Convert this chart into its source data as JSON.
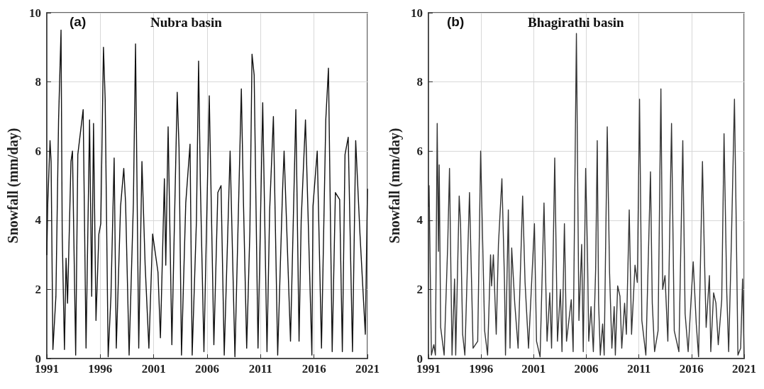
{
  "chart_data": [
    {
      "type": "line",
      "title": "Nubra basin",
      "annotations": [
        "(a)"
      ],
      "ylabel": "Snowfall (mm/day)",
      "xlim": [
        1991,
        2021
      ],
      "ylim": [
        0,
        10
      ],
      "xticks": [
        1991,
        1996,
        2001,
        2006,
        2011,
        2016,
        2021
      ],
      "yticks": [
        0,
        2,
        4,
        6,
        8,
        10
      ],
      "grid": true,
      "marker": "none",
      "x": [
        1991.0,
        1991.09,
        1991.3,
        1991.4,
        1991.57,
        1991.85,
        1992.1,
        1992.33,
        1992.44,
        1992.65,
        1992.8,
        1992.94,
        1993.26,
        1993.4,
        1993.7,
        1993.9,
        1994.4,
        1994.67,
        1995.0,
        1995.2,
        1995.37,
        1995.6,
        1995.87,
        1996.05,
        1996.3,
        1996.46,
        1996.74,
        1997.0,
        1997.3,
        1997.5,
        1997.9,
        1998.2,
        1998.37,
        1998.7,
        1999.1,
        1999.3,
        1999.6,
        1999.9,
        2000.2,
        2000.55,
        2000.9,
        2001.4,
        2001.63,
        2002.0,
        2002.13,
        2002.35,
        2002.7,
        2003.2,
        2003.37,
        2003.6,
        2004.0,
        2004.4,
        2004.6,
        2005.0,
        2005.2,
        2005.37,
        2005.7,
        2006.2,
        2006.63,
        2007.0,
        2007.3,
        2007.6,
        2008.15,
        2008.6,
        2009.2,
        2009.4,
        2009.7,
        2010.0,
        2010.2,
        2010.4,
        2010.76,
        2011.2,
        2011.6,
        2011.85,
        2012.2,
        2012.6,
        2013.05,
        2013.2,
        2013.4,
        2013.8,
        2014.3,
        2014.6,
        2014.8,
        2015.2,
        2015.8,
        2015.9,
        2016.3,
        2016.7,
        2017.1,
        2017.35,
        2017.7,
        2018.0,
        2018.4,
        2018.65,
        2018.9,
        2019.2,
        2019.6,
        2019.9,
        2020.3,
        2020.8,
        2021.0
      ],
      "series": [
        {
          "color": "#111111",
          "values": [
            3.0,
            4.5,
            6.3,
            5.7,
            0.26,
            1.8,
            6.9,
            9.5,
            3.6,
            0.26,
            2.9,
            1.6,
            5.7,
            6.0,
            0.1,
            5.9,
            7.2,
            0.3,
            6.9,
            1.8,
            6.8,
            1.1,
            3.6,
            3.9,
            9.0,
            7.5,
            0.05,
            1.8,
            5.8,
            0.3,
            4.4,
            5.5,
            4.5,
            0.1,
            4.5,
            9.1,
            0.3,
            5.7,
            2.7,
            0.3,
            3.6,
            2.5,
            0.6,
            5.2,
            2.7,
            6.7,
            0.4,
            7.7,
            6.1,
            0.1,
            4.5,
            6.2,
            0.1,
            4.0,
            8.6,
            5.0,
            0.2,
            7.6,
            0.4,
            4.8,
            5.0,
            0.1,
            6.0,
            0.05,
            7.8,
            4.5,
            0.3,
            3.7,
            8.8,
            8.2,
            0.3,
            7.4,
            0.2,
            4.3,
            7.0,
            0.1,
            4.8,
            6.0,
            4.2,
            0.5,
            7.2,
            0.5,
            4.0,
            6.9,
            0.1,
            4.4,
            6.0,
            0.3,
            6.9,
            8.4,
            0.2,
            4.8,
            4.6,
            0.2,
            5.9,
            6.4,
            0.2,
            6.3,
            3.6,
            0.7,
            4.9
          ]
        }
      ]
    },
    {
      "type": "line",
      "title": "Bhagirathi basin",
      "annotations": [
        "(b)"
      ],
      "ylabel": "Snowfall (mm/day)",
      "xlim": [
        1991,
        2021
      ],
      "ylim": [
        0,
        10
      ],
      "xticks": [
        1991,
        1996,
        2001,
        2006,
        2011,
        2016,
        2021
      ],
      "yticks": [
        0,
        2,
        4,
        6,
        8,
        10
      ],
      "grid": true,
      "marker": "none",
      "x": [
        1991.0,
        1991.06,
        1991.28,
        1991.51,
        1991.66,
        1991.83,
        1991.95,
        1992.02,
        1992.16,
        1992.49,
        1992.83,
        1993.0,
        1993.24,
        1993.48,
        1993.59,
        1993.92,
        1994.05,
        1994.25,
        1994.46,
        1994.9,
        1995.24,
        1995.68,
        1995.96,
        1996.34,
        1996.62,
        1996.9,
        1997.0,
        1997.17,
        1997.44,
        1997.65,
        1997.98,
        1998.22,
        1998.32,
        1998.59,
        1998.75,
        1998.91,
        1999.2,
        1999.52,
        1999.95,
        2000.18,
        2000.51,
        2001.07,
        2001.27,
        2001.61,
        2001.98,
        2002.27,
        2002.53,
        2002.7,
        2003.0,
        2003.26,
        2003.54,
        2003.69,
        2003.92,
        2004.12,
        2004.57,
        2004.75,
        2005.06,
        2005.3,
        2005.56,
        2005.71,
        2005.94,
        2006.11,
        2006.23,
        2006.45,
        2006.67,
        2006.89,
        2007.04,
        2007.17,
        2007.33,
        2007.55,
        2007.7,
        2007.99,
        2008.21,
        2008.43,
        2008.65,
        2008.76,
        2008.98,
        2009.2,
        2009.37,
        2009.64,
        2009.81,
        2010.08,
        2010.3,
        2010.63,
        2010.85,
        2011.06,
        2011.28,
        2011.66,
        2012.1,
        2012.27,
        2012.49,
        2012.82,
        2013.09,
        2013.26,
        2013.48,
        2013.75,
        2014.1,
        2014.36,
        2014.8,
        2015.17,
        2015.39,
        2015.68,
        2016.16,
        2016.45,
        2016.67,
        2017.04,
        2017.22,
        2017.39,
        2017.7,
        2017.83,
        2018.1,
        2018.32,
        2018.54,
        2018.87,
        2019.09,
        2019.35,
        2019.53,
        2019.79,
        2020.08,
        2020.23,
        2020.41,
        2020.67,
        2020.85,
        2021.0
      ],
      "series": [
        {
          "color": "#333333",
          "values": [
            4.4,
            5.0,
            0.1,
            0.4,
            0.1,
            6.8,
            3.1,
            5.6,
            0.9,
            0.1,
            3.3,
            5.5,
            0.1,
            2.3,
            0.1,
            4.7,
            3.9,
            0.7,
            0.1,
            4.8,
            0.3,
            0.5,
            6.0,
            0.8,
            0.1,
            3.0,
            2.1,
            3.0,
            0.7,
            3.3,
            5.2,
            2.3,
            0.1,
            4.3,
            0.3,
            3.2,
            1.6,
            0.3,
            4.7,
            2.2,
            0.3,
            3.9,
            0.5,
            0.05,
            4.5,
            0.5,
            1.9,
            0.3,
            5.8,
            0.5,
            2.0,
            0.2,
            3.9,
            0.5,
            1.7,
            0.2,
            9.4,
            1.1,
            3.3,
            0.2,
            5.5,
            3.1,
            0.5,
            1.5,
            0.2,
            2.6,
            6.3,
            1.6,
            0.1,
            1.0,
            0.1,
            6.7,
            2.5,
            0.3,
            1.5,
            0.1,
            2.1,
            1.8,
            0.3,
            1.6,
            0.7,
            4.3,
            0.7,
            2.7,
            2.2,
            7.5,
            1.1,
            0.1,
            5.4,
            1.6,
            0.2,
            0.8,
            7.8,
            2.0,
            2.4,
            0.5,
            6.8,
            0.8,
            0.2,
            6.3,
            1.3,
            0.2,
            2.8,
            1.0,
            0.05,
            5.7,
            3.0,
            0.9,
            2.4,
            0.2,
            1.9,
            1.6,
            0.4,
            1.7,
            6.5,
            1.9,
            0.2,
            3.4,
            7.5,
            4.3,
            0.1,
            0.3,
            2.3,
            0.05
          ]
        }
      ]
    }
  ]
}
